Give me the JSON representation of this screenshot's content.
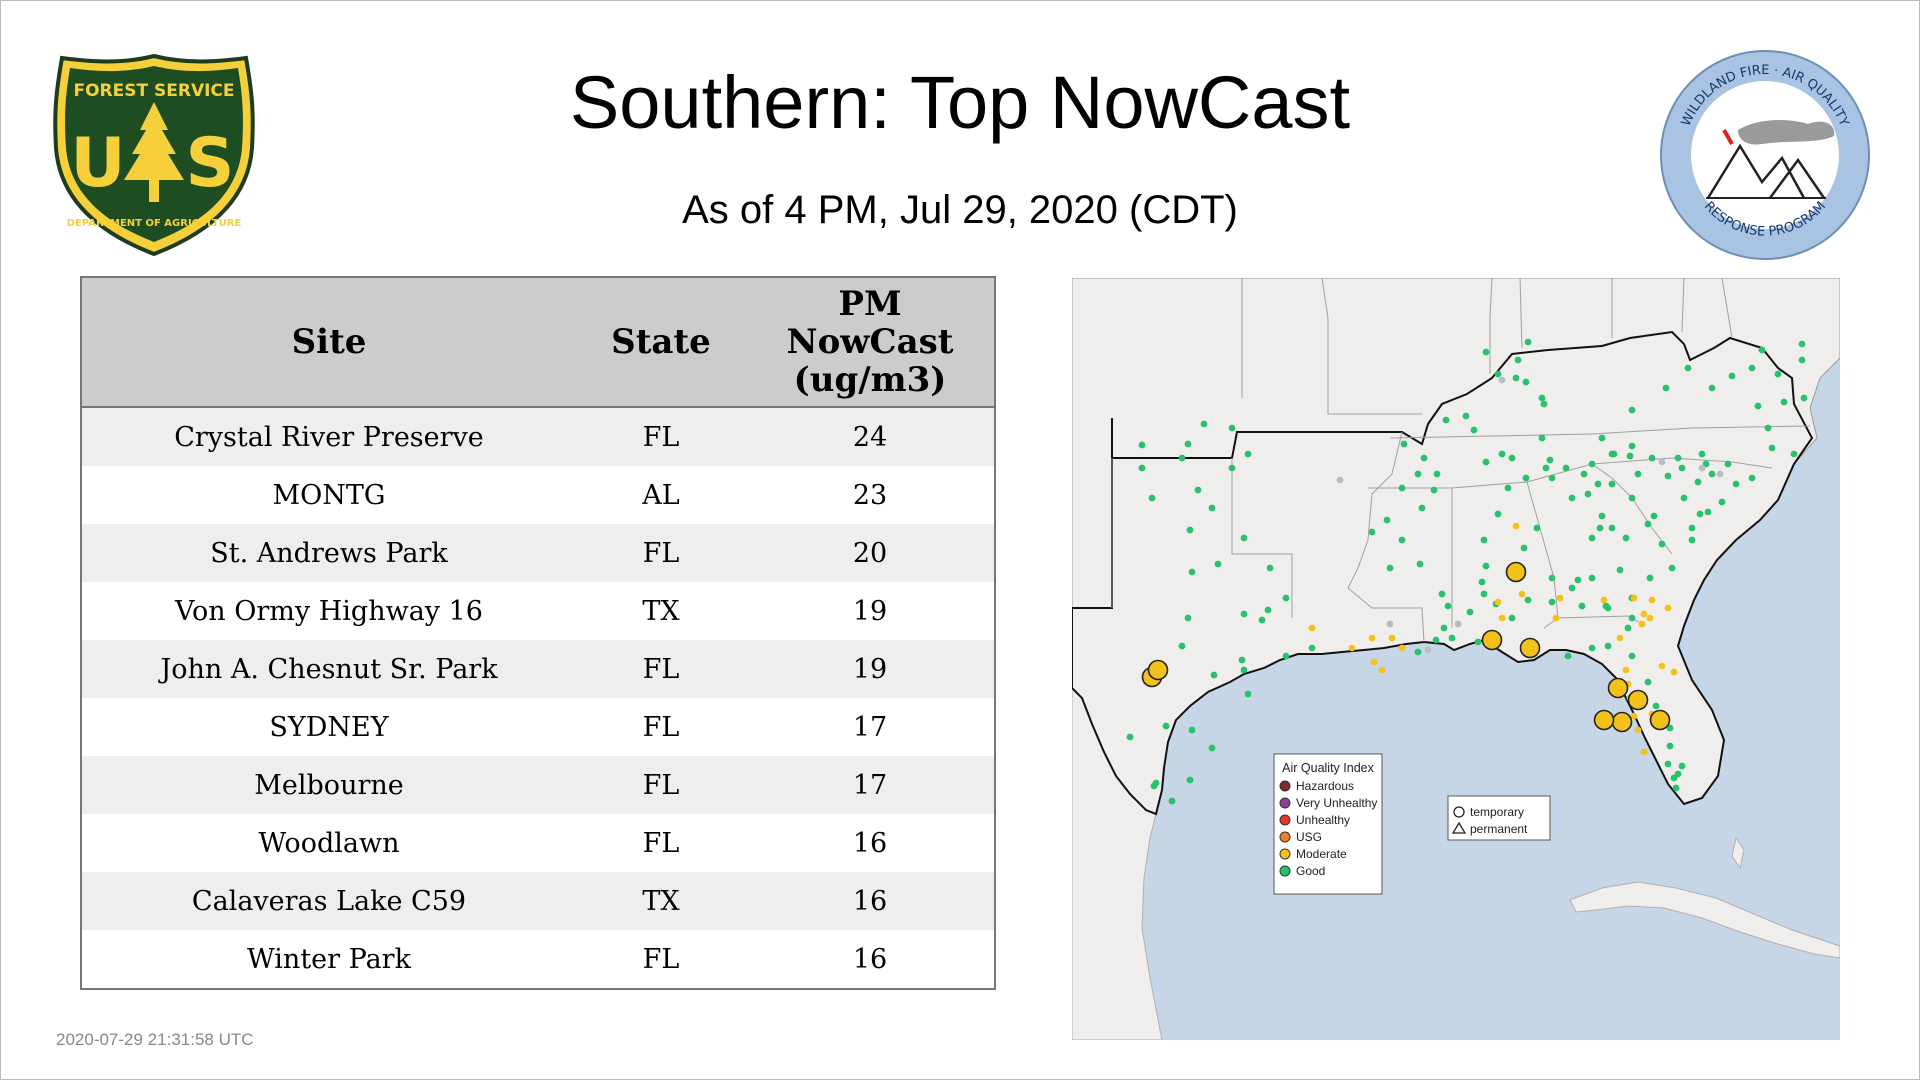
{
  "header": {
    "title": "Southern: Top NowCast",
    "subtitle": "As of  4 PM, Jul 29, 2020 (CDT)"
  },
  "logos": {
    "usfs": {
      "top_text": "FOREST SERVICE",
      "letters": "US",
      "bottom_text": "DEPARTMENT OF AGRICULTURE"
    },
    "wfar": {
      "top_text": "WILDLAND FIRE · AIR QUALITY",
      "bottom_text": "RESPONSE PROGRAM"
    }
  },
  "table": {
    "headers": {
      "site": "Site",
      "state": "State",
      "value_line1": "PM",
      "value_line2": "NowCast",
      "value_line3": "(ug/m3)"
    },
    "rows": [
      {
        "site": "Crystal River Preserve",
        "state": "FL",
        "value": "24"
      },
      {
        "site": "MONTG",
        "state": "AL",
        "value": "23"
      },
      {
        "site": "St. Andrews Park",
        "state": "FL",
        "value": "20"
      },
      {
        "site": "Von Ormy Highway 16",
        "state": "TX",
        "value": "19"
      },
      {
        "site": "John A. Chesnut Sr. Park",
        "state": "FL",
        "value": "19"
      },
      {
        "site": "SYDNEY",
        "state": "FL",
        "value": "17"
      },
      {
        "site": "Melbourne",
        "state": "FL",
        "value": "17"
      },
      {
        "site": "Woodlawn",
        "state": "FL",
        "value": "16"
      },
      {
        "site": "Calaveras Lake C59",
        "state": "TX",
        "value": "16"
      },
      {
        "site": "Winter Park",
        "state": "FL",
        "value": "16"
      }
    ]
  },
  "map": {
    "legend_title": "Air Quality Index",
    "aqi_levels": [
      {
        "label": "Hazardous",
        "color": "#7e2a2a"
      },
      {
        "label": "Very Unhealthy",
        "color": "#8f3f97"
      },
      {
        "label": "Unhealthy",
        "color": "#e8372a"
      },
      {
        "label": "USG",
        "color": "#f07e23"
      },
      {
        "label": "Moderate",
        "color": "#f2c21a"
      },
      {
        "label": "Good",
        "color": "#27c26b"
      }
    ],
    "type_legend": {
      "temporary": "temporary",
      "permanent": "permanent"
    },
    "colors": {
      "water": "#c6d6e6",
      "land": "#f0eeec",
      "nodata": "#b9bcc0",
      "good": "#27c26b",
      "moderate": "#f2c21a"
    }
  },
  "footer": {
    "timestamp": "2020-07-29 21:31:58 UTC"
  }
}
